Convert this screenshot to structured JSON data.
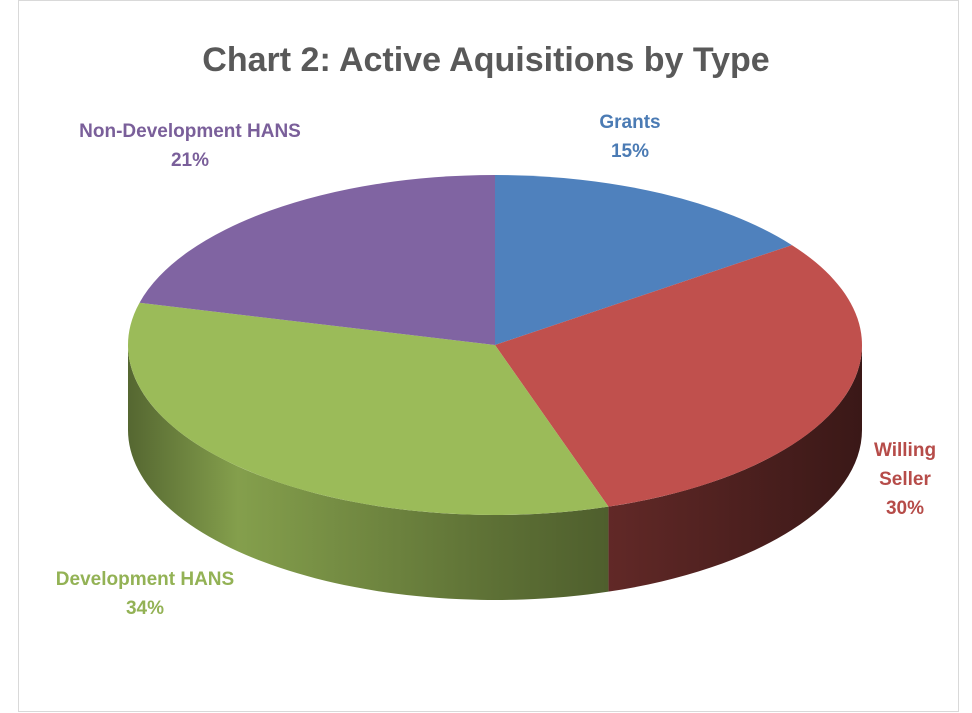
{
  "chart_data": {
    "type": "pie",
    "title": "Chart 2: Active Aquisitions by Type",
    "categories": [
      "Grants",
      "Willing Seller",
      "Development HANS",
      "Non-Development HANS"
    ],
    "values": [
      15,
      30,
      34,
      21
    ],
    "value_labels": [
      "15%",
      "30%",
      "34%",
      "21%"
    ],
    "colors": [
      "#4f81bd",
      "#c0504d",
      "#9bbb59",
      "#8064a2"
    ]
  }
}
